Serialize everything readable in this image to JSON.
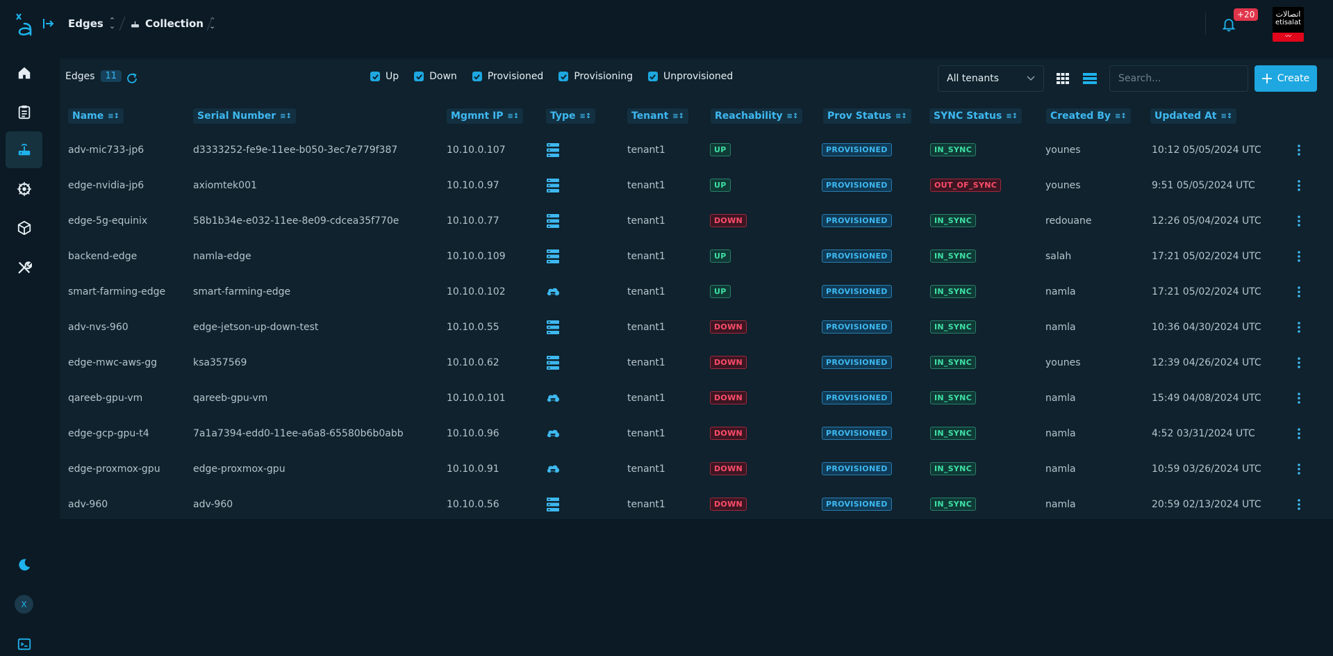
{
  "colors": {
    "accent": "#1ea7e0",
    "up": "#3fe0a5",
    "down": "#ff4d6a",
    "bg": "#0b1a24",
    "panel": "#0f222d"
  },
  "header": {
    "breadcrumb": [
      {
        "label": "Edges"
      },
      {
        "label": "Collection"
      }
    ],
    "notifications_badge": "+20",
    "brand_ar": "اتصالات",
    "brand_en": "etisalat"
  },
  "sidebar": {
    "items": [
      {
        "name": "home",
        "icon": "home-icon"
      },
      {
        "name": "catalog",
        "icon": "clipboard-icon"
      },
      {
        "name": "edges",
        "icon": "router-icon",
        "active": true
      },
      {
        "name": "kubernetes",
        "icon": "helm-icon"
      },
      {
        "name": "packages",
        "icon": "cube-icon"
      },
      {
        "name": "tools",
        "icon": "tools-icon"
      }
    ],
    "avatar": "X"
  },
  "toolbar": {
    "title": "Edges",
    "count": "11",
    "filters": [
      {
        "label": "Up",
        "checked": true
      },
      {
        "label": "Down",
        "checked": true
      },
      {
        "label": "Provisioned",
        "checked": true
      },
      {
        "label": "Provisioning",
        "checked": true
      },
      {
        "label": "Unprovisioned",
        "checked": true
      }
    ],
    "tenant_select": "All tenants",
    "search_placeholder": "Search...",
    "create_label": "Create"
  },
  "table": {
    "columns": [
      "Name",
      "Serial Number",
      "Mgmnt IP",
      "Type",
      "Tenant",
      "Reachability",
      "Prov Status",
      "SYNC Status",
      "Created By",
      "Updated At"
    ],
    "rows": [
      {
        "name": "adv-mic733-jp6",
        "serial": "d3333252-fe9e-11ee-b050-3ec7e779f387",
        "ip": "10.10.0.107",
        "type": "server",
        "tenant": "tenant1",
        "reach": "UP",
        "prov": "PROVISIONED",
        "sync": "IN_SYNC",
        "created_by": "younes",
        "updated": "10:12 05/05/2024 UTC"
      },
      {
        "name": "edge-nvidia-jp6",
        "serial": "axiomtek001",
        "ip": "10.10.0.97",
        "type": "server",
        "tenant": "tenant1",
        "reach": "UP",
        "prov": "PROVISIONED",
        "sync": "OUT_OF_SYNC",
        "created_by": "younes",
        "updated": "9:51 05/05/2024 UTC"
      },
      {
        "name": "edge-5g-equinix",
        "serial": "58b1b34e-e032-11ee-8e09-cdcea35f770e",
        "ip": "10.10.0.77",
        "type": "server",
        "tenant": "tenant1",
        "reach": "DOWN",
        "prov": "PROVISIONED",
        "sync": "IN_SYNC",
        "created_by": "redouane",
        "updated": "12:26 05/04/2024 UTC"
      },
      {
        "name": "backend-edge",
        "serial": "namla-edge",
        "ip": "10.10.0.109",
        "type": "server",
        "tenant": "tenant1",
        "reach": "UP",
        "prov": "PROVISIONED",
        "sync": "IN_SYNC",
        "created_by": "salah",
        "updated": "17:21 05/02/2024 UTC"
      },
      {
        "name": "smart-farming-edge",
        "serial": "smart-farming-edge",
        "ip": "10.10.0.102",
        "type": "cloud",
        "tenant": "tenant1",
        "reach": "UP",
        "prov": "PROVISIONED",
        "sync": "IN_SYNC",
        "created_by": "namla",
        "updated": "17:21 05/02/2024 UTC"
      },
      {
        "name": "adv-nvs-960",
        "serial": "edge-jetson-up-down-test",
        "ip": "10.10.0.55",
        "type": "server",
        "tenant": "tenant1",
        "reach": "DOWN",
        "prov": "PROVISIONED",
        "sync": "IN_SYNC",
        "created_by": "namla",
        "updated": "10:36 04/30/2024 UTC"
      },
      {
        "name": "edge-mwc-aws-gg",
        "serial": "ksa357569",
        "ip": "10.10.0.62",
        "type": "server",
        "tenant": "tenant1",
        "reach": "DOWN",
        "prov": "PROVISIONED",
        "sync": "IN_SYNC",
        "created_by": "younes",
        "updated": "12:39 04/26/2024 UTC"
      },
      {
        "name": "qareeb-gpu-vm",
        "serial": "qareeb-gpu-vm",
        "ip": "10.10.0.101",
        "type": "cloud",
        "tenant": "tenant1",
        "reach": "DOWN",
        "prov": "PROVISIONED",
        "sync": "IN_SYNC",
        "created_by": "namla",
        "updated": "15:49 04/08/2024 UTC"
      },
      {
        "name": "edge-gcp-gpu-t4",
        "serial": "7a1a7394-edd0-11ee-a6a8-65580b6b0abb",
        "ip": "10.10.0.96",
        "type": "cloud",
        "tenant": "tenant1",
        "reach": "DOWN",
        "prov": "PROVISIONED",
        "sync": "IN_SYNC",
        "created_by": "namla",
        "updated": "4:52 03/31/2024 UTC"
      },
      {
        "name": "edge-proxmox-gpu",
        "serial": "edge-proxmox-gpu",
        "ip": "10.10.0.91",
        "type": "cloud",
        "tenant": "tenant1",
        "reach": "DOWN",
        "prov": "PROVISIONED",
        "sync": "IN_SYNC",
        "created_by": "namla",
        "updated": "10:59 03/26/2024 UTC"
      },
      {
        "name": "adv-960",
        "serial": "adv-960",
        "ip": "10.10.0.56",
        "type": "server",
        "tenant": "tenant1",
        "reach": "DOWN",
        "prov": "PROVISIONED",
        "sync": "IN_SYNC",
        "created_by": "namla",
        "updated": "20:59 02/13/2024 UTC"
      }
    ]
  }
}
